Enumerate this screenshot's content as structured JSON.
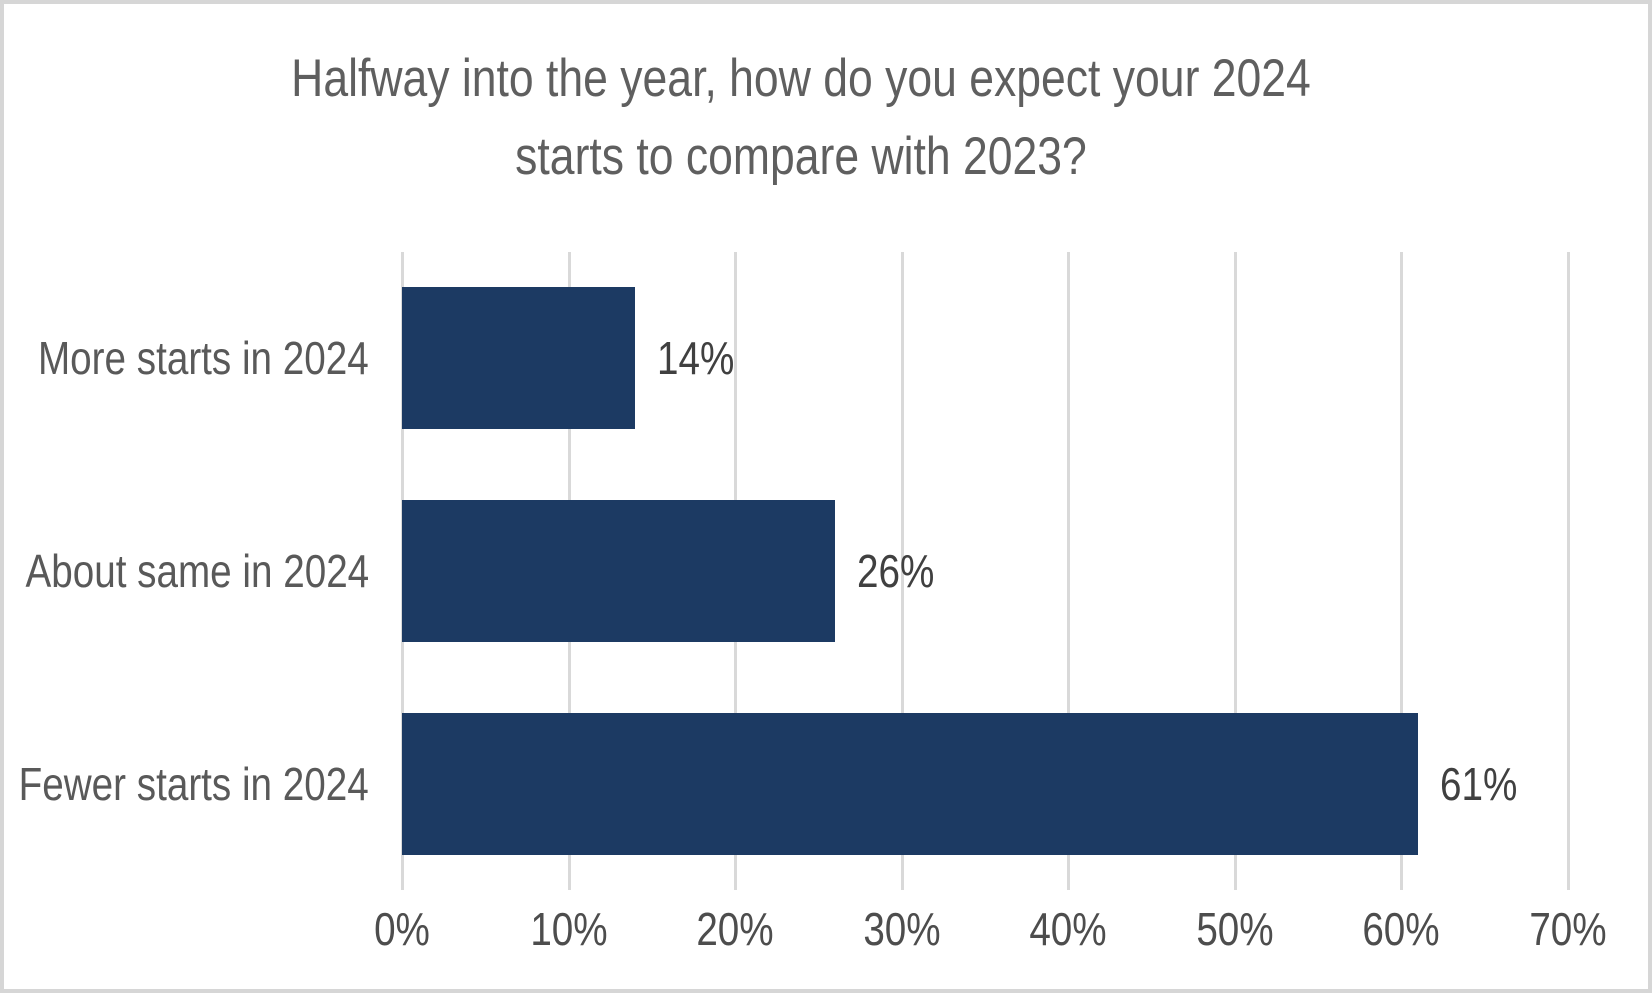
{
  "header": {
    "title_line1": "Halfway into the year, how do you expect your 2024",
    "title_line2": "starts to compare with 2023?"
  },
  "chart_data": {
    "type": "bar",
    "orientation": "horizontal",
    "title": "Halfway into the year, how do you expect your 2024 starts to compare with 2023?",
    "categories": [
      "More starts in 2024",
      "About same in 2024",
      "Fewer starts in 2024"
    ],
    "values": [
      14,
      26,
      61
    ],
    "data_labels": [
      "14%",
      "26%",
      "61%"
    ],
    "xlabel": "",
    "ylabel": "",
    "xlim": [
      0,
      70
    ],
    "x_tick_labels": [
      "0%",
      "10%",
      "20%",
      "30%",
      "40%",
      "50%",
      "60%",
      "70%"
    ],
    "grid": "vertical gridlines only, bars drawn over gridlines",
    "legend_position": "none",
    "colors": {
      "bar": "#1c3a63",
      "title_text": "#5f5f5f",
      "category_text": "#595959",
      "value_text": "#404040",
      "axis_text": "#4d4d4d",
      "gridline": "#d9d9d9",
      "background": "#ffffff",
      "border": "#d6d6d6"
    }
  }
}
